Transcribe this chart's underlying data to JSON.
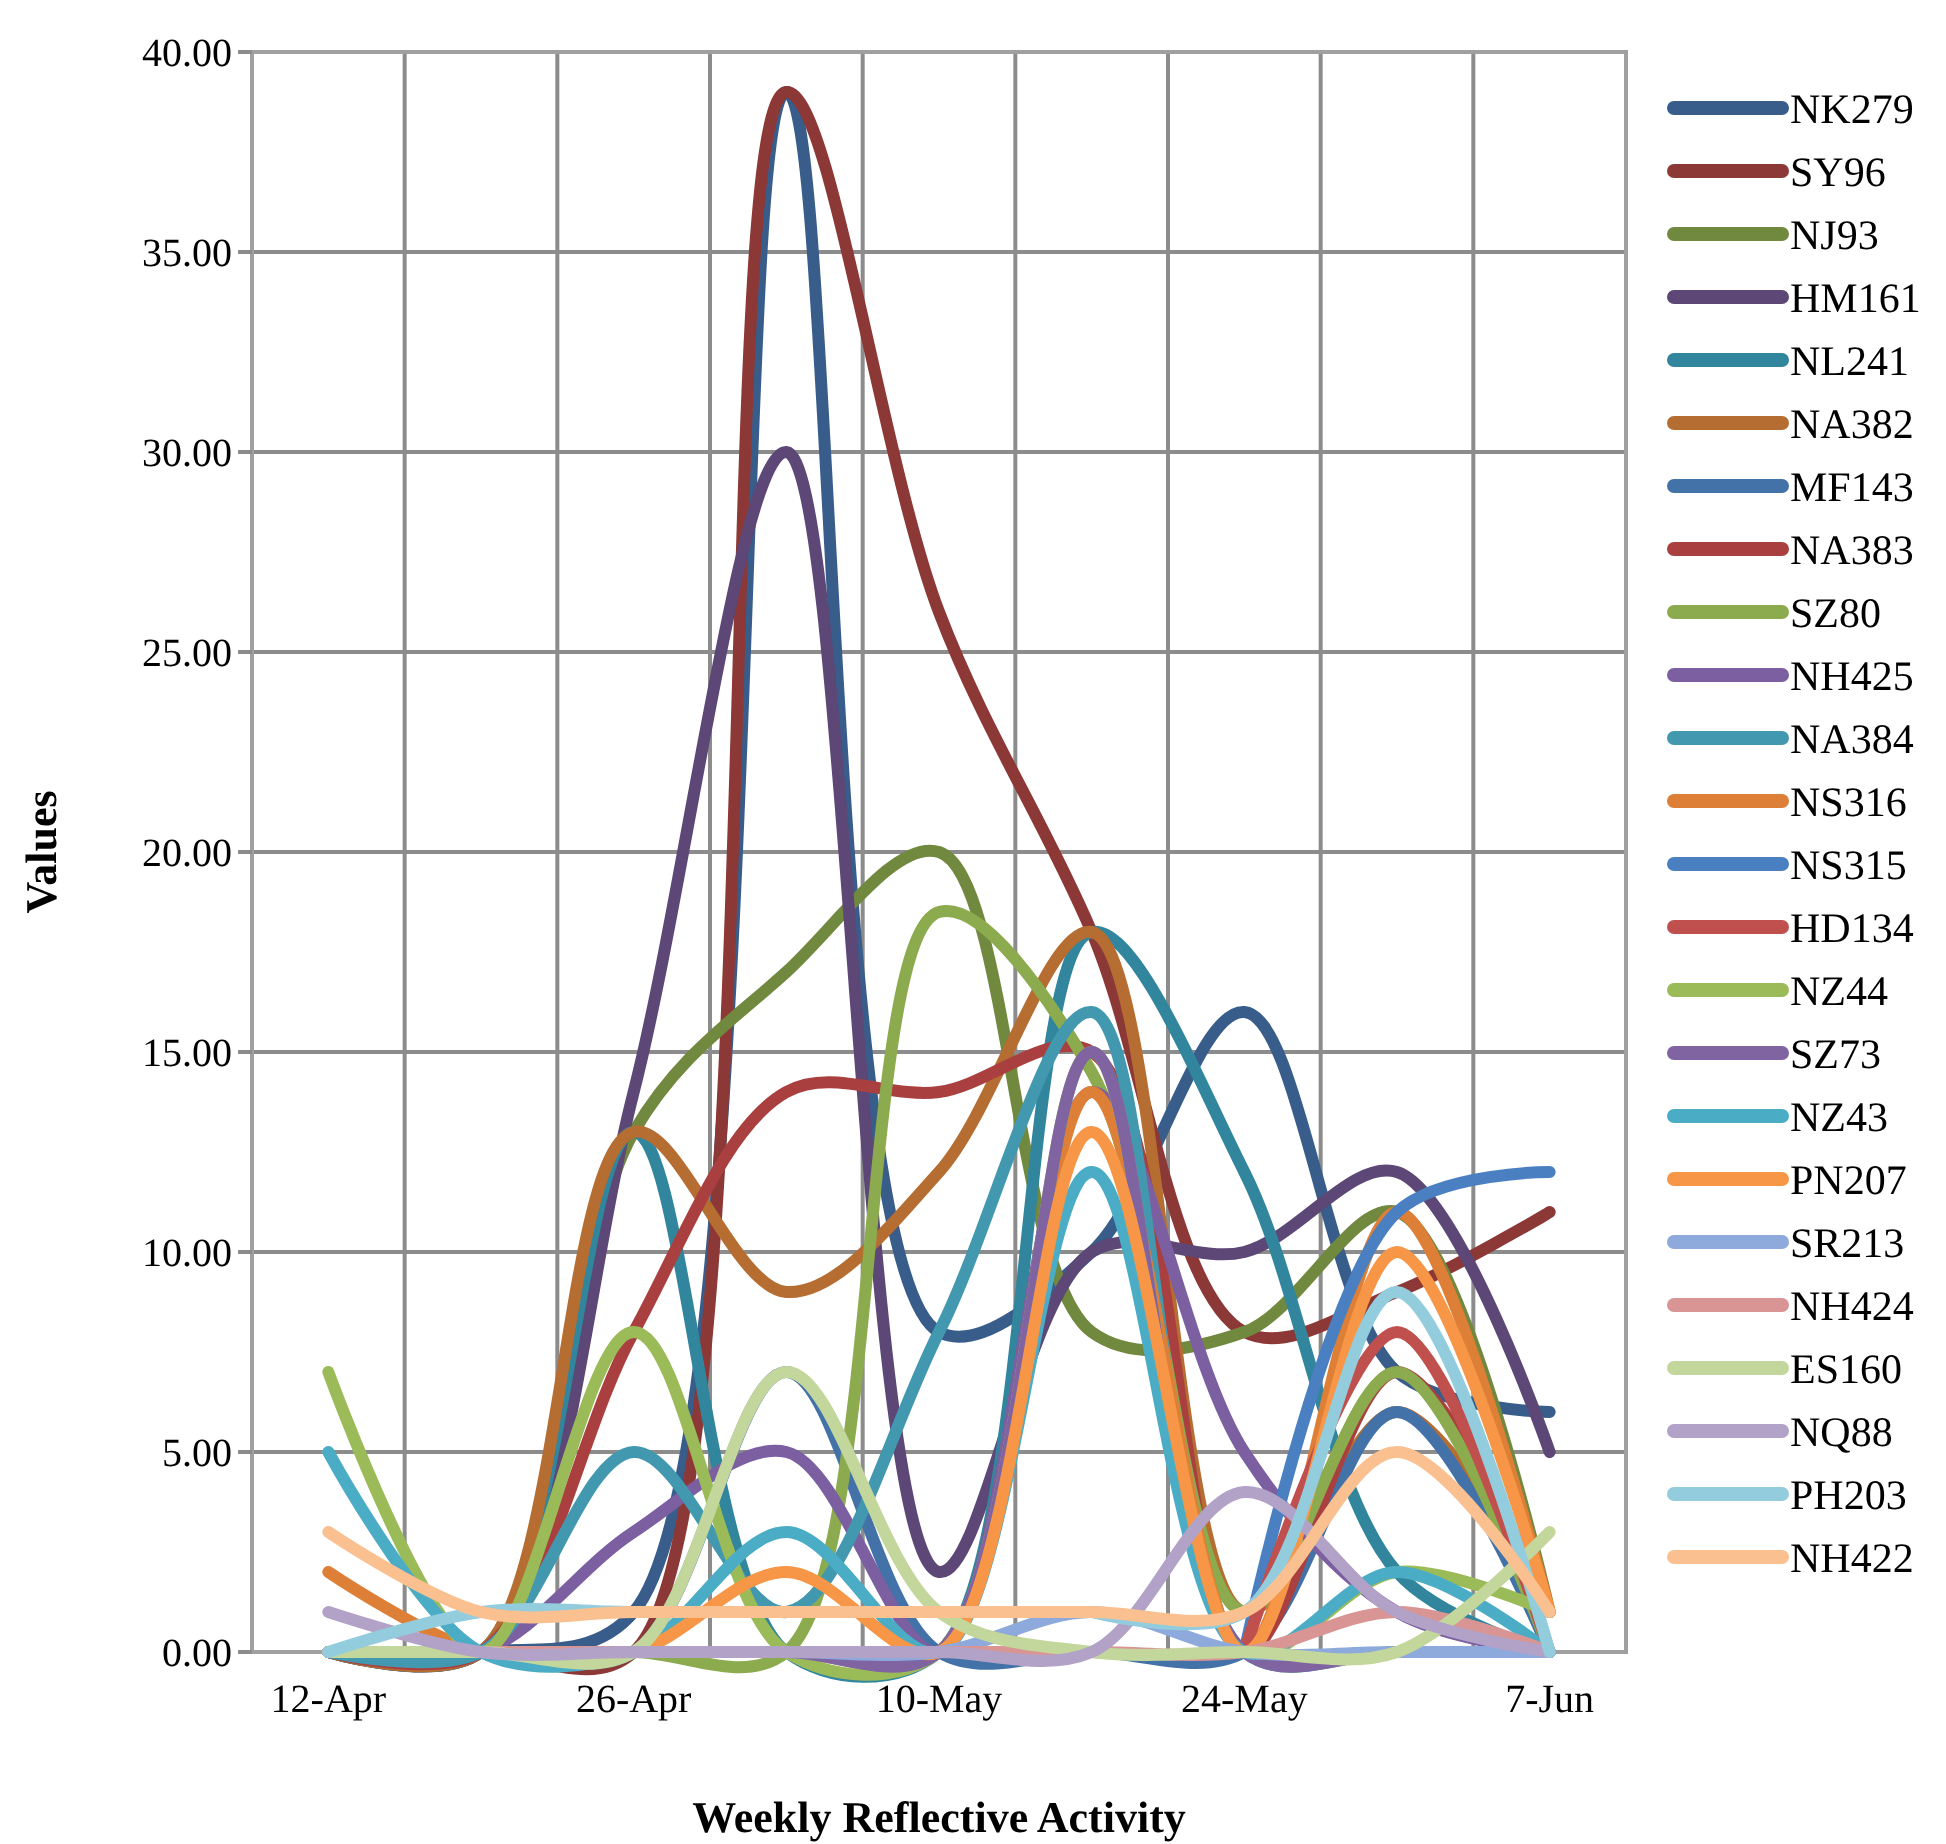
{
  "chart_data": {
    "type": "line",
    "xlabel": "Weekly Reflective Activity",
    "ylabel": "Values",
    "categories": [
      "12-Apr",
      null,
      "26-Apr",
      null,
      "10-May",
      null,
      "24-May",
      null,
      "7-Jun"
    ],
    "ylim": [
      0,
      40
    ],
    "yticks": [
      {
        "value": 0,
        "label": "0.00"
      },
      {
        "value": 5,
        "label": "5.00"
      },
      {
        "value": 10,
        "label": "10.00"
      },
      {
        "value": 15,
        "label": "15.00"
      },
      {
        "value": 20,
        "label": "20.00"
      },
      {
        "value": 25,
        "label": "25.00"
      },
      {
        "value": 30,
        "label": "30.00"
      },
      {
        "value": 35,
        "label": "35.00"
      },
      {
        "value": 40,
        "label": "40.00"
      }
    ],
    "grid": true,
    "legend": "right",
    "marker": "none",
    "line_style": "solid",
    "series": [
      {
        "name": "NK279",
        "color": "#385d8a",
        "values": [
          0,
          0,
          1,
          39,
          8,
          10,
          16,
          7,
          6
        ]
      },
      {
        "name": "SY96",
        "color": "#8c3836",
        "values": [
          0,
          0,
          0,
          39,
          26,
          18,
          8,
          9,
          11
        ]
      },
      {
        "name": "NJ93",
        "color": "#71893f",
        "values": [
          0,
          0,
          13,
          17,
          20,
          8,
          8,
          11,
          1
        ]
      },
      {
        "name": "HM161",
        "color": "#5c4776",
        "values": [
          0,
          0,
          14,
          30,
          2,
          10,
          10,
          12,
          5
        ]
      },
      {
        "name": "NL241",
        "color": "#31859c",
        "values": [
          0,
          0,
          13,
          0,
          0,
          18,
          12,
          2,
          0
        ]
      },
      {
        "name": "NA382",
        "color": "#b66d31",
        "values": [
          0,
          0,
          13,
          9,
          12,
          18,
          1,
          6,
          1
        ]
      },
      {
        "name": "MF143",
        "color": "#4372a8",
        "values": [
          0,
          0,
          0,
          7,
          0,
          0,
          0,
          6,
          0
        ]
      },
      {
        "name": "NA383",
        "color": "#a9403f",
        "values": [
          0,
          0,
          8,
          14,
          14,
          15,
          0,
          7,
          1
        ]
      },
      {
        "name": "SZ80",
        "color": "#8bab4e",
        "values": [
          0,
          0,
          0,
          0,
          18.5,
          14.5,
          1,
          7,
          0
        ]
      },
      {
        "name": "NH425",
        "color": "#7c5fa0",
        "values": [
          0,
          0,
          3,
          5,
          0,
          14,
          5,
          1,
          0
        ]
      },
      {
        "name": "NA384",
        "color": "#4298af",
        "values": [
          0,
          0,
          5,
          1,
          8,
          16,
          0,
          0,
          0
        ]
      },
      {
        "name": "NS316",
        "color": "#dd7f36",
        "values": [
          2,
          0,
          0,
          0,
          0,
          14,
          0,
          11,
          1
        ]
      },
      {
        "name": "NS315",
        "color": "#4a7fc1",
        "values": [
          null,
          null,
          null,
          null,
          null,
          null,
          0,
          11,
          12
        ]
      },
      {
        "name": "HD134",
        "color": "#c0504d",
        "values": [
          null,
          null,
          null,
          null,
          null,
          null,
          0,
          8,
          0
        ]
      },
      {
        "name": "NZ44",
        "color": "#9bbb59",
        "values": [
          7,
          0,
          8,
          0,
          0,
          15,
          0,
          2,
          1
        ]
      },
      {
        "name": "SZ73",
        "color": "#8064a2",
        "values": [
          0,
          0,
          0,
          0,
          0,
          15,
          0,
          0,
          0
        ]
      },
      {
        "name": "NZ43",
        "color": "#4bacc6",
        "values": [
          5,
          0,
          0,
          3,
          0,
          12,
          0,
          2,
          0
        ]
      },
      {
        "name": "PN207",
        "color": "#f79646",
        "values": [
          0,
          0,
          0,
          2,
          0,
          13,
          0,
          10,
          1
        ]
      },
      {
        "name": "SR213",
        "color": "#8ea9db",
        "values": [
          0,
          0,
          0,
          0,
          0,
          1,
          0,
          0,
          0
        ]
      },
      {
        "name": "NH424",
        "color": "#d99594",
        "values": [
          0,
          0,
          0,
          0,
          0,
          0,
          0,
          1,
          0
        ]
      },
      {
        "name": "ES160",
        "color": "#c3d69b",
        "values": [
          0,
          0,
          0,
          7,
          1,
          0,
          0,
          0,
          3
        ]
      },
      {
        "name": "NQ88",
        "color": "#b2a2c7",
        "values": [
          1,
          0,
          0,
          0,
          0,
          0,
          4,
          1,
          0
        ]
      },
      {
        "name": "PH203",
        "color": "#93cddd",
        "values": [
          0,
          1,
          1,
          1,
          null,
          1,
          1,
          9,
          0
        ]
      },
      {
        "name": "NH422",
        "color": "#fac090",
        "values": [
          3,
          1,
          1,
          1,
          1,
          1,
          1,
          5,
          1
        ]
      }
    ]
  }
}
